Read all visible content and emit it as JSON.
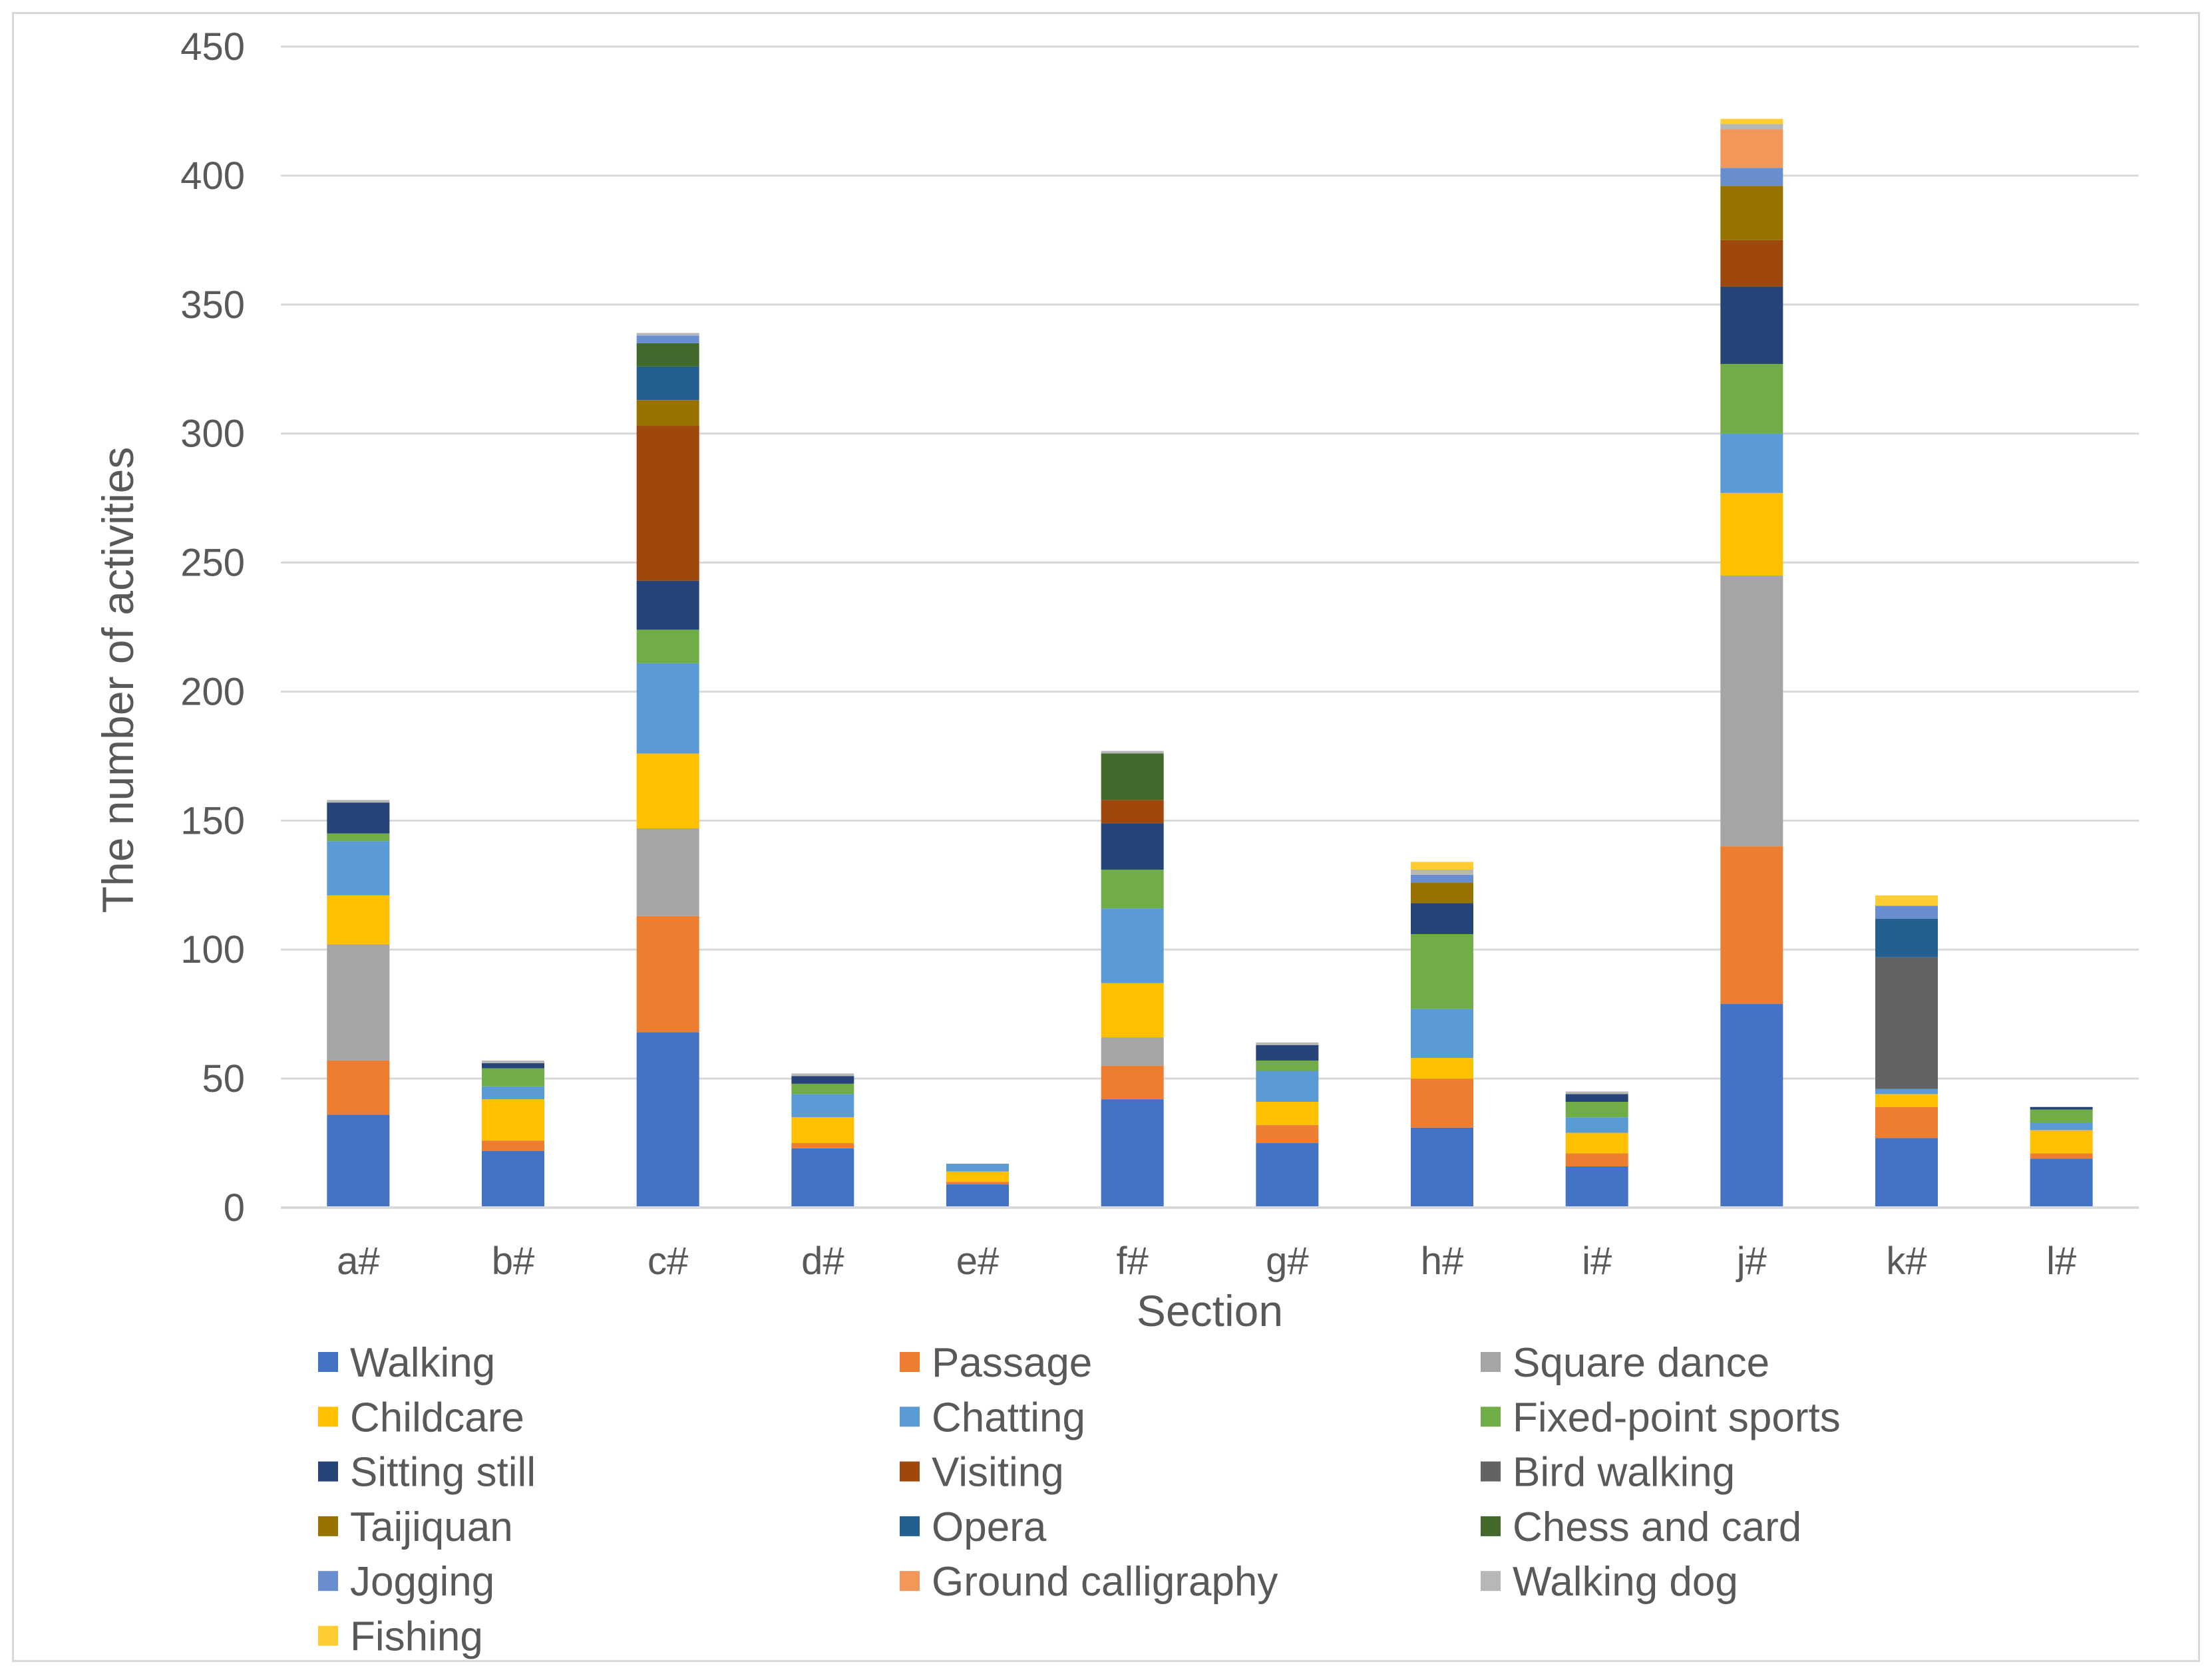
{
  "chart_data": {
    "type": "bar",
    "stacked": true,
    "title": "",
    "xlabel": "Section",
    "ylabel": "The number of activities",
    "ylim": [
      0,
      450
    ],
    "yticks": [
      0,
      50,
      100,
      150,
      200,
      250,
      300,
      350,
      400,
      450
    ],
    "grid": true,
    "legend_position": "bottom",
    "categories": [
      "a#",
      "b#",
      "c#",
      "d#",
      "e#",
      "f#",
      "g#",
      "h#",
      "i#",
      "j#",
      "k#",
      "l#"
    ],
    "series": [
      {
        "name": "Walking",
        "color": "#4472C4",
        "values": [
          36,
          22,
          68,
          23,
          9,
          42,
          25,
          31,
          16,
          79,
          27,
          19
        ]
      },
      {
        "name": "Passage",
        "color": "#ED7D31",
        "values": [
          21,
          4,
          45,
          2,
          1,
          13,
          7,
          19,
          5,
          61,
          12,
          2
        ]
      },
      {
        "name": "Square dance",
        "color": "#A5A5A5",
        "values": [
          45,
          0,
          34,
          0,
          0,
          11,
          0,
          0,
          0,
          105,
          0,
          0
        ]
      },
      {
        "name": "Childcare",
        "color": "#FFC000",
        "values": [
          19,
          16,
          29,
          10,
          4,
          21,
          9,
          8,
          8,
          32,
          5,
          9
        ]
      },
      {
        "name": "Chatting",
        "color": "#5B9BD5",
        "values": [
          21,
          5,
          35,
          9,
          3,
          29,
          12,
          19,
          6,
          23,
          2,
          3
        ]
      },
      {
        "name": "Fixed-point sports",
        "color": "#70AD47",
        "values": [
          3,
          7,
          13,
          4,
          0,
          15,
          4,
          29,
          6,
          27,
          0,
          5
        ]
      },
      {
        "name": "Sitting still",
        "color": "#264478",
        "values": [
          12,
          2,
          19,
          3,
          0,
          18,
          6,
          12,
          3,
          30,
          0,
          1
        ]
      },
      {
        "name": "Visiting",
        "color": "#9E480E",
        "values": [
          0,
          0,
          60,
          0,
          0,
          9,
          0,
          0,
          0,
          18,
          0,
          0
        ]
      },
      {
        "name": "Bird walking",
        "color": "#636363",
        "values": [
          0,
          0,
          0,
          0,
          0,
          0,
          0,
          0,
          0,
          0,
          51,
          0
        ]
      },
      {
        "name": "Taijiquan",
        "color": "#997300",
        "values": [
          0,
          0,
          10,
          0,
          0,
          0,
          0,
          8,
          0,
          21,
          0,
          0
        ]
      },
      {
        "name": "Opera",
        "color": "#255E91",
        "values": [
          0,
          0,
          13,
          0,
          0,
          0,
          0,
          0,
          0,
          0,
          15,
          0
        ]
      },
      {
        "name": "Chess and card",
        "color": "#43682B",
        "values": [
          0,
          0,
          9,
          0,
          0,
          18,
          0,
          0,
          0,
          0,
          0,
          0
        ]
      },
      {
        "name": "Jogging",
        "color": "#698ED0",
        "values": [
          0,
          0,
          3,
          0,
          0,
          0,
          0,
          3,
          0,
          7,
          5,
          0
        ]
      },
      {
        "name": "Ground calligraphy",
        "color": "#F1975A",
        "values": [
          0,
          0,
          0,
          0,
          0,
          0,
          0,
          0,
          0,
          15,
          0,
          0
        ]
      },
      {
        "name": "Walking dog",
        "color": "#B7B7B7",
        "values": [
          1,
          1,
          1,
          1,
          0,
          1,
          1,
          2,
          1,
          2,
          0,
          0
        ]
      },
      {
        "name": "Fishing",
        "color": "#FFCD33",
        "values": [
          0,
          0,
          0,
          0,
          0,
          0,
          0,
          3,
          0,
          2,
          4,
          0
        ]
      }
    ]
  }
}
